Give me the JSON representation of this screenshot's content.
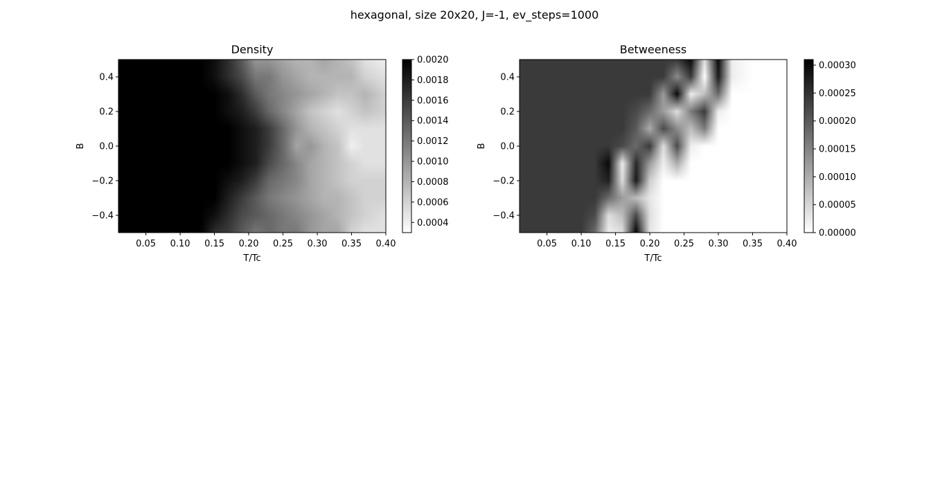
{
  "figure": {
    "suptitle": "hexagonal, size 20x20, J=-1, ev_steps=1000"
  },
  "chart_data": [
    {
      "type": "heatmap",
      "title": "Density",
      "xlabel": "T/Tc",
      "ylabel": "B",
      "xlim": [
        0.01,
        0.4
      ],
      "ylim": [
        -0.5,
        0.5
      ],
      "xticks": [
        "0.05",
        "0.10",
        "0.15",
        "0.20",
        "0.25",
        "0.30",
        "0.35",
        "0.40"
      ],
      "yticks": [
        "−0.4",
        "−0.2",
        "0.0",
        "0.2",
        "0.4"
      ],
      "colormap": "gray_r",
      "vmin": 0.0003,
      "vmax": 0.002,
      "colorbar_ticks": [
        "0.0004",
        "0.0006",
        "0.0008",
        "0.0010",
        "0.0012",
        "0.0014",
        "0.0016",
        "0.0018",
        "0.0020"
      ],
      "x": [
        0.01,
        0.05,
        0.1,
        0.13,
        0.15,
        0.17,
        0.19,
        0.21,
        0.23,
        0.25,
        0.27,
        0.29,
        0.31,
        0.33,
        0.35,
        0.37,
        0.4
      ],
      "y": [
        -0.5,
        -0.4,
        -0.3,
        -0.2,
        -0.1,
        0.0,
        0.1,
        0.2,
        0.3,
        0.4,
        0.5
      ],
      "z": [
        [
          0.002,
          0.002,
          0.002,
          0.002,
          0.0017,
          0.0016,
          0.0014,
          0.0012,
          0.0013,
          0.0012,
          0.0012,
          0.001,
          0.0009,
          0.0009,
          0.0006,
          0.0005,
          0.0005
        ],
        [
          0.002,
          0.002,
          0.002,
          0.002,
          0.0019,
          0.0017,
          0.0015,
          0.0014,
          0.0013,
          0.0012,
          0.0011,
          0.001,
          0.0009,
          0.0008,
          0.0007,
          0.0006,
          0.0005
        ],
        [
          0.002,
          0.002,
          0.002,
          0.002,
          0.002,
          0.0018,
          0.0016,
          0.0014,
          0.0012,
          0.0011,
          0.001,
          0.0009,
          0.0008,
          0.0008,
          0.0007,
          0.0006,
          0.0006
        ],
        [
          0.002,
          0.002,
          0.002,
          0.002,
          0.002,
          0.0019,
          0.0018,
          0.0016,
          0.0013,
          0.0012,
          0.0011,
          0.0009,
          0.0008,
          0.0007,
          0.0006,
          0.0006,
          0.0006
        ],
        [
          0.002,
          0.002,
          0.002,
          0.002,
          0.002,
          0.002,
          0.0019,
          0.0018,
          0.0015,
          0.0013,
          0.0011,
          0.0009,
          0.0008,
          0.0007,
          0.0006,
          0.0005,
          0.0005
        ],
        [
          0.002,
          0.002,
          0.002,
          0.002,
          0.002,
          0.002,
          0.0019,
          0.0018,
          0.0016,
          0.0013,
          0.0009,
          0.001,
          0.0008,
          0.0007,
          0.0004,
          0.0005,
          0.0005
        ],
        [
          0.002,
          0.002,
          0.002,
          0.002,
          0.002,
          0.002,
          0.0019,
          0.0018,
          0.0016,
          0.0013,
          0.001,
          0.0008,
          0.0007,
          0.0006,
          0.0005,
          0.0005,
          0.0005
        ],
        [
          0.002,
          0.002,
          0.002,
          0.002,
          0.002,
          0.0019,
          0.0018,
          0.0016,
          0.0013,
          0.0011,
          0.0009,
          0.0007,
          0.0006,
          0.0005,
          0.0006,
          0.0007,
          0.0006
        ],
        [
          0.002,
          0.002,
          0.002,
          0.002,
          0.002,
          0.0019,
          0.0017,
          0.0014,
          0.0012,
          0.0011,
          0.001,
          0.0009,
          0.0008,
          0.0007,
          0.0007,
          0.0008,
          0.0006
        ],
        [
          0.002,
          0.002,
          0.002,
          0.002,
          0.0019,
          0.0017,
          0.0015,
          0.0012,
          0.0012,
          0.001,
          0.0009,
          0.0008,
          0.0008,
          0.0008,
          0.0008,
          0.0006,
          0.0005
        ],
        [
          0.002,
          0.002,
          0.002,
          0.002,
          0.0019,
          0.0017,
          0.0014,
          0.001,
          0.001,
          0.0009,
          0.0008,
          0.0008,
          0.0009,
          0.0008,
          0.0007,
          0.0005,
          0.0004
        ]
      ]
    },
    {
      "type": "heatmap",
      "title": "Betweeness",
      "xlabel": "T/Tc",
      "ylabel": "B",
      "xlim": [
        0.01,
        0.4
      ],
      "ylim": [
        -0.5,
        0.5
      ],
      "xticks": [
        "0.05",
        "0.10",
        "0.15",
        "0.20",
        "0.25",
        "0.30",
        "0.35",
        "0.40"
      ],
      "yticks": [
        "−0.4",
        "−0.2",
        "0.0",
        "0.2",
        "0.4"
      ],
      "colormap": "gray_r",
      "vmin": 0.0,
      "vmax": 0.00031,
      "colorbar_ticks": [
        "0.00000",
        "0.00005",
        "0.00010",
        "0.00015",
        "0.00020",
        "0.00025",
        "0.00030"
      ],
      "x": [
        0.01,
        0.05,
        0.1,
        0.12,
        0.14,
        0.16,
        0.18,
        0.2,
        0.22,
        0.24,
        0.26,
        0.28,
        0.3,
        0.32,
        0.35,
        0.4
      ],
      "y": [
        -0.5,
        -0.4,
        -0.3,
        -0.2,
        -0.1,
        0.0,
        0.1,
        0.2,
        0.3,
        0.4,
        0.5
      ],
      "z": [
        [
          0.00024,
          0.00024,
          0.00024,
          0.00018,
          2e-05,
          4e-05,
          0.00031,
          3e-05,
          0.0,
          0.0,
          0.0,
          0.0,
          0.0,
          0.0,
          0.0,
          0.0
        ],
        [
          0.00024,
          0.00024,
          0.00024,
          0.00022,
          4e-05,
          8e-05,
          0.00022,
          4e-05,
          0.0,
          0.0,
          0.0,
          0.0,
          0.0,
          0.0,
          0.0,
          0.0
        ],
        [
          0.00024,
          0.00024,
          0.00024,
          0.00024,
          0.00018,
          0.00012,
          8e-05,
          3e-05,
          0.0,
          0.0,
          0.0,
          0.0,
          0.0,
          0.0,
          0.0,
          0.0
        ],
        [
          0.00024,
          0.00024,
          0.00024,
          0.00024,
          0.00027,
          4e-05,
          0.00028,
          6e-05,
          0.0,
          0.0,
          0.0,
          0.0,
          0.0,
          0.0,
          0.0,
          0.0
        ],
        [
          0.00024,
          0.00024,
          0.00024,
          0.00024,
          0.0003,
          2e-05,
          0.00026,
          0.00012,
          2e-05,
          0.0001,
          0.0,
          0.0,
          0.0,
          0.0,
          0.0,
          0.0
        ],
        [
          0.00024,
          0.00024,
          0.00024,
          0.00024,
          0.00024,
          0.00022,
          0.00018,
          0.00024,
          4e-05,
          0.00022,
          2e-05,
          0.0,
          0.0,
          0.0,
          0.0,
          0.0
        ],
        [
          0.00024,
          0.00024,
          0.00024,
          0.00024,
          0.00024,
          0.00024,
          0.0002,
          0.0001,
          0.00022,
          0.00014,
          8e-05,
          0.00016,
          0.0,
          0.0,
          0.0,
          0.0
        ],
        [
          0.00024,
          0.00024,
          0.00024,
          0.00024,
          0.00024,
          0.00024,
          0.00022,
          0.00018,
          0.00012,
          4e-05,
          0.00016,
          0.00024,
          2e-05,
          0.0,
          0.0,
          0.0
        ],
        [
          0.00024,
          0.00024,
          0.00024,
          0.00024,
          0.00024,
          0.00024,
          0.00024,
          0.00024,
          0.00012,
          0.0003,
          2e-05,
          8e-05,
          0.00018,
          0.0,
          0.0,
          0.0
        ],
        [
          0.00024,
          0.00024,
          0.00024,
          0.00024,
          0.00024,
          0.00024,
          0.00024,
          0.00024,
          0.00024,
          0.00014,
          0.00024,
          0.0,
          0.00028,
          2e-05,
          0.0,
          0.0
        ],
        [
          0.00024,
          0.00024,
          0.00024,
          0.00024,
          0.00024,
          0.00024,
          0.00024,
          0.00024,
          0.00024,
          0.00024,
          0.0003,
          4e-05,
          0.0003,
          2e-05,
          0.0,
          0.0
        ]
      ]
    }
  ]
}
